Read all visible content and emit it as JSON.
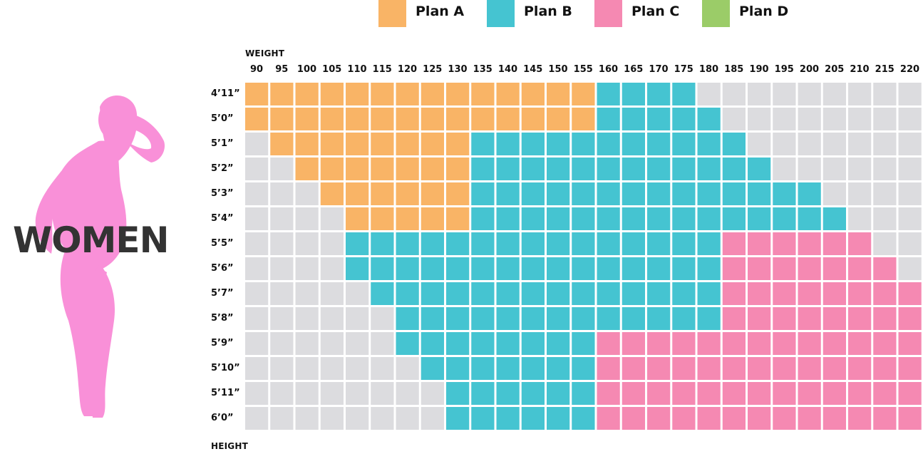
{
  "brand_label": "WOMEN",
  "chart_data": {
    "type": "heatmap",
    "title": "",
    "xlabel": "WEIGHT",
    "ylabel": "HEIGHT",
    "x": [
      90,
      95,
      100,
      105,
      110,
      115,
      120,
      125,
      130,
      135,
      140,
      145,
      150,
      155,
      160,
      165,
      170,
      175,
      180,
      185,
      190,
      195,
      200,
      205,
      210,
      215,
      220
    ],
    "y": [
      "4’11”",
      "5’0”",
      "5’1”",
      "5’2”",
      "5’3”",
      "5’4”",
      "5’5”",
      "5’6”",
      "5’7”",
      "5’8”",
      "5’9”",
      "5’10”",
      "5’11”",
      "6’0”"
    ],
    "legend": [
      {
        "key": "A",
        "name": "Plan A",
        "color": "#f9b466"
      },
      {
        "key": "B",
        "name": "Plan B",
        "color": "#45c4d1"
      },
      {
        "key": "C",
        "name": "Plan C",
        "color": "#f589b2"
      },
      {
        "key": "D",
        "name": "Plan D",
        "color": "#9bcc68"
      }
    ],
    "empty_color": "#dcdcdf",
    "silhouette_color": "#f990d8",
    "rows": [
      {
        "height": "4’11”",
        "plans": [
          "A",
          "A",
          "A",
          "A",
          "A",
          "A",
          "A",
          "A",
          "A",
          "A",
          "A",
          "A",
          "A",
          "A",
          "B",
          "B",
          "B",
          "B",
          "-",
          "-",
          "-",
          "-",
          "-",
          "-",
          "-",
          "-",
          "-"
        ]
      },
      {
        "height": "5’0”",
        "plans": [
          "A",
          "A",
          "A",
          "A",
          "A",
          "A",
          "A",
          "A",
          "A",
          "A",
          "A",
          "A",
          "A",
          "A",
          "B",
          "B",
          "B",
          "B",
          "B",
          "-",
          "-",
          "-",
          "-",
          "-",
          "-",
          "-",
          "-"
        ]
      },
      {
        "height": "5’1”",
        "plans": [
          "-",
          "A",
          "A",
          "A",
          "A",
          "A",
          "A",
          "A",
          "A",
          "B",
          "B",
          "B",
          "B",
          "B",
          "B",
          "B",
          "B",
          "B",
          "B",
          "B",
          "-",
          "-",
          "-",
          "-",
          "-",
          "-",
          "-"
        ]
      },
      {
        "height": "5’2”",
        "plans": [
          "-",
          "-",
          "A",
          "A",
          "A",
          "A",
          "A",
          "A",
          "A",
          "B",
          "B",
          "B",
          "B",
          "B",
          "B",
          "B",
          "B",
          "B",
          "B",
          "B",
          "B",
          "-",
          "-",
          "-",
          "-",
          "-",
          "-"
        ]
      },
      {
        "height": "5’3”",
        "plans": [
          "-",
          "-",
          "-",
          "A",
          "A",
          "A",
          "A",
          "A",
          "A",
          "B",
          "B",
          "B",
          "B",
          "B",
          "B",
          "B",
          "B",
          "B",
          "B",
          "B",
          "B",
          "B",
          "B",
          "-",
          "-",
          "-",
          "-"
        ]
      },
      {
        "height": "5’4”",
        "plans": [
          "-",
          "-",
          "-",
          "-",
          "A",
          "A",
          "A",
          "A",
          "A",
          "B",
          "B",
          "B",
          "B",
          "B",
          "B",
          "B",
          "B",
          "B",
          "B",
          "B",
          "B",
          "B",
          "B",
          "B",
          "-",
          "-",
          "-"
        ]
      },
      {
        "height": "5’5”",
        "plans": [
          "-",
          "-",
          "-",
          "-",
          "B",
          "B",
          "B",
          "B",
          "B",
          "B",
          "B",
          "B",
          "B",
          "B",
          "B",
          "B",
          "B",
          "B",
          "B",
          "C",
          "C",
          "C",
          "C",
          "C",
          "C",
          "-",
          "-"
        ]
      },
      {
        "height": "5’6”",
        "plans": [
          "-",
          "-",
          "-",
          "-",
          "B",
          "B",
          "B",
          "B",
          "B",
          "B",
          "B",
          "B",
          "B",
          "B",
          "B",
          "B",
          "B",
          "B",
          "B",
          "C",
          "C",
          "C",
          "C",
          "C",
          "C",
          "C",
          "-"
        ]
      },
      {
        "height": "5’7”",
        "plans": [
          "-",
          "-",
          "-",
          "-",
          "-",
          "B",
          "B",
          "B",
          "B",
          "B",
          "B",
          "B",
          "B",
          "B",
          "B",
          "B",
          "B",
          "B",
          "B",
          "C",
          "C",
          "C",
          "C",
          "C",
          "C",
          "C",
          "C"
        ]
      },
      {
        "height": "5’8”",
        "plans": [
          "-",
          "-",
          "-",
          "-",
          "-",
          "-",
          "B",
          "B",
          "B",
          "B",
          "B",
          "B",
          "B",
          "B",
          "B",
          "B",
          "B",
          "B",
          "B",
          "C",
          "C",
          "C",
          "C",
          "C",
          "C",
          "C",
          "C"
        ]
      },
      {
        "height": "5’9”",
        "plans": [
          "-",
          "-",
          "-",
          "-",
          "-",
          "-",
          "B",
          "B",
          "B",
          "B",
          "B",
          "B",
          "B",
          "B",
          "C",
          "C",
          "C",
          "C",
          "C",
          "C",
          "C",
          "C",
          "C",
          "C",
          "C",
          "C",
          "C"
        ]
      },
      {
        "height": "5’10”",
        "plans": [
          "-",
          "-",
          "-",
          "-",
          "-",
          "-",
          "-",
          "B",
          "B",
          "B",
          "B",
          "B",
          "B",
          "B",
          "C",
          "C",
          "C",
          "C",
          "C",
          "C",
          "C",
          "C",
          "C",
          "C",
          "C",
          "C",
          "C"
        ]
      },
      {
        "height": "5’11”",
        "plans": [
          "-",
          "-",
          "-",
          "-",
          "-",
          "-",
          "-",
          "-",
          "B",
          "B",
          "B",
          "B",
          "B",
          "B",
          "C",
          "C",
          "C",
          "C",
          "C",
          "C",
          "C",
          "C",
          "C",
          "C",
          "C",
          "C",
          "C"
        ]
      },
      {
        "height": "6’0”",
        "plans": [
          "-",
          "-",
          "-",
          "-",
          "-",
          "-",
          "-",
          "-",
          "B",
          "B",
          "B",
          "B",
          "B",
          "B",
          "C",
          "C",
          "C",
          "C",
          "C",
          "C",
          "C",
          "C",
          "C",
          "C",
          "C",
          "C",
          "C"
        ]
      }
    ]
  }
}
